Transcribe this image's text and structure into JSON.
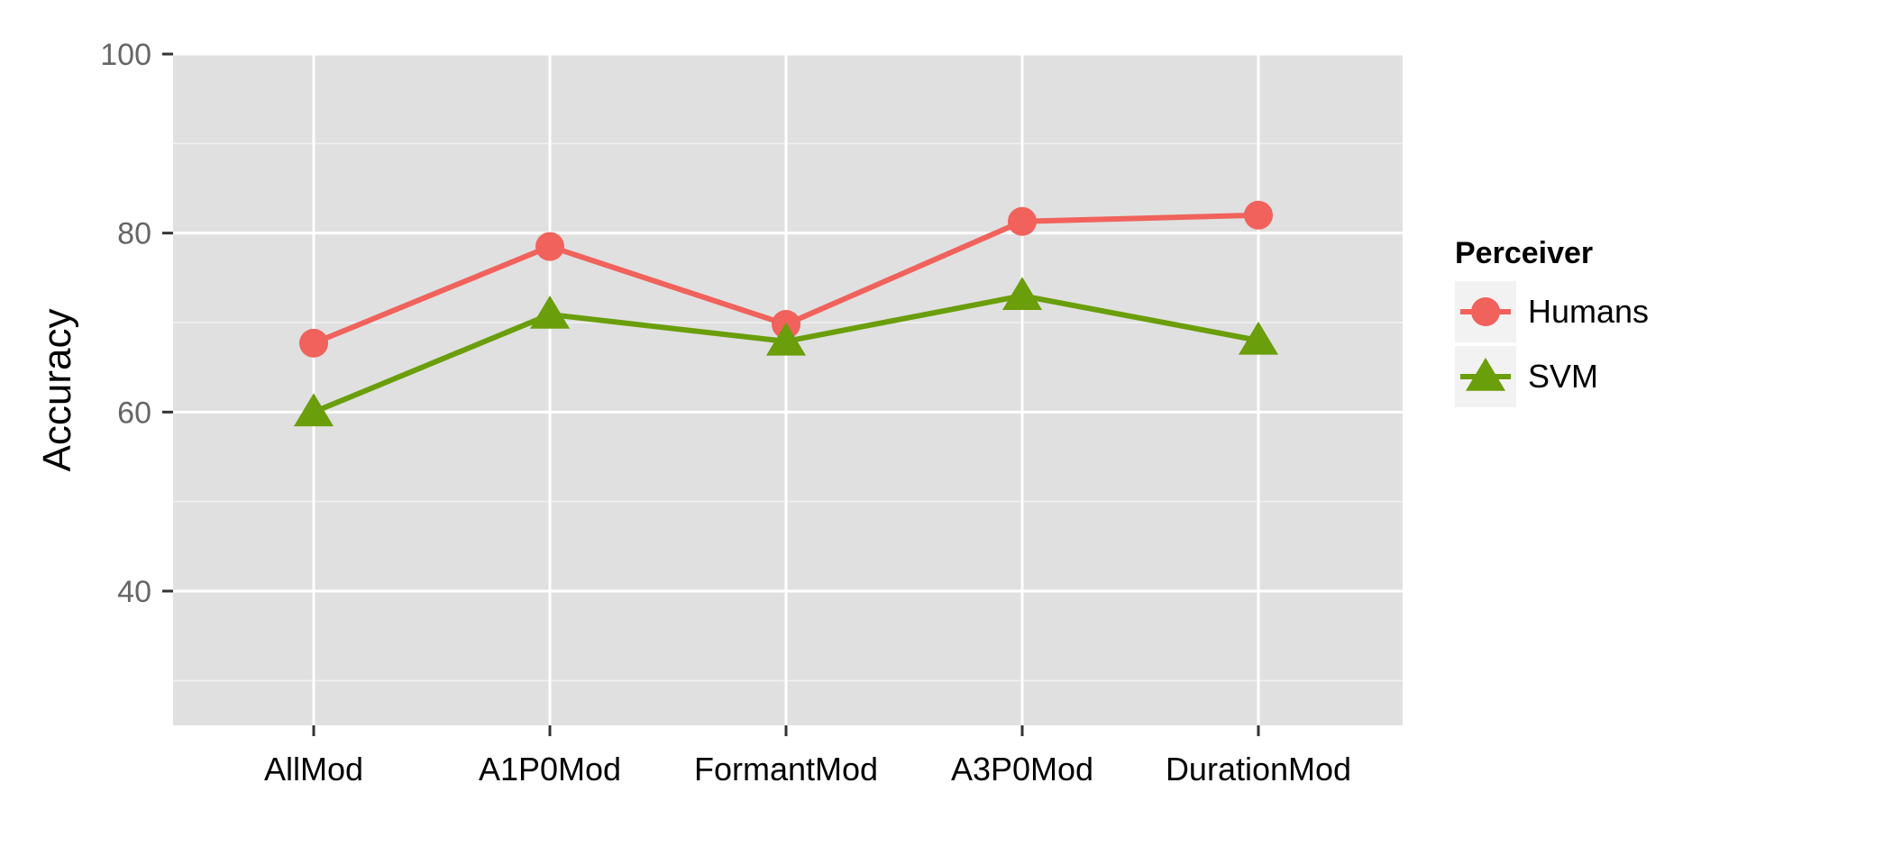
{
  "chart_data": {
    "type": "line",
    "title": "",
    "xlabel": "",
    "ylabel": "Accuracy",
    "categories": [
      "AllMod",
      "A1P0Mod",
      "FormantMod",
      "A3P0Mod",
      "DurationMod"
    ],
    "ylim": [
      25,
      100
    ],
    "yticks": [
      40,
      60,
      80,
      100
    ],
    "grid": true,
    "legend_position": "right",
    "legend_title": "Perceiver",
    "series": [
      {
        "name": "Humans",
        "values": [
          67.7,
          78.5,
          69.8,
          81.3,
          82.0
        ],
        "color": "#F0625B",
        "marker": "circle"
      },
      {
        "name": "SVM",
        "values": [
          60.0,
          70.9,
          67.9,
          73.0,
          68.0
        ],
        "color": "#6A9E0A",
        "marker": "triangle"
      }
    ]
  }
}
